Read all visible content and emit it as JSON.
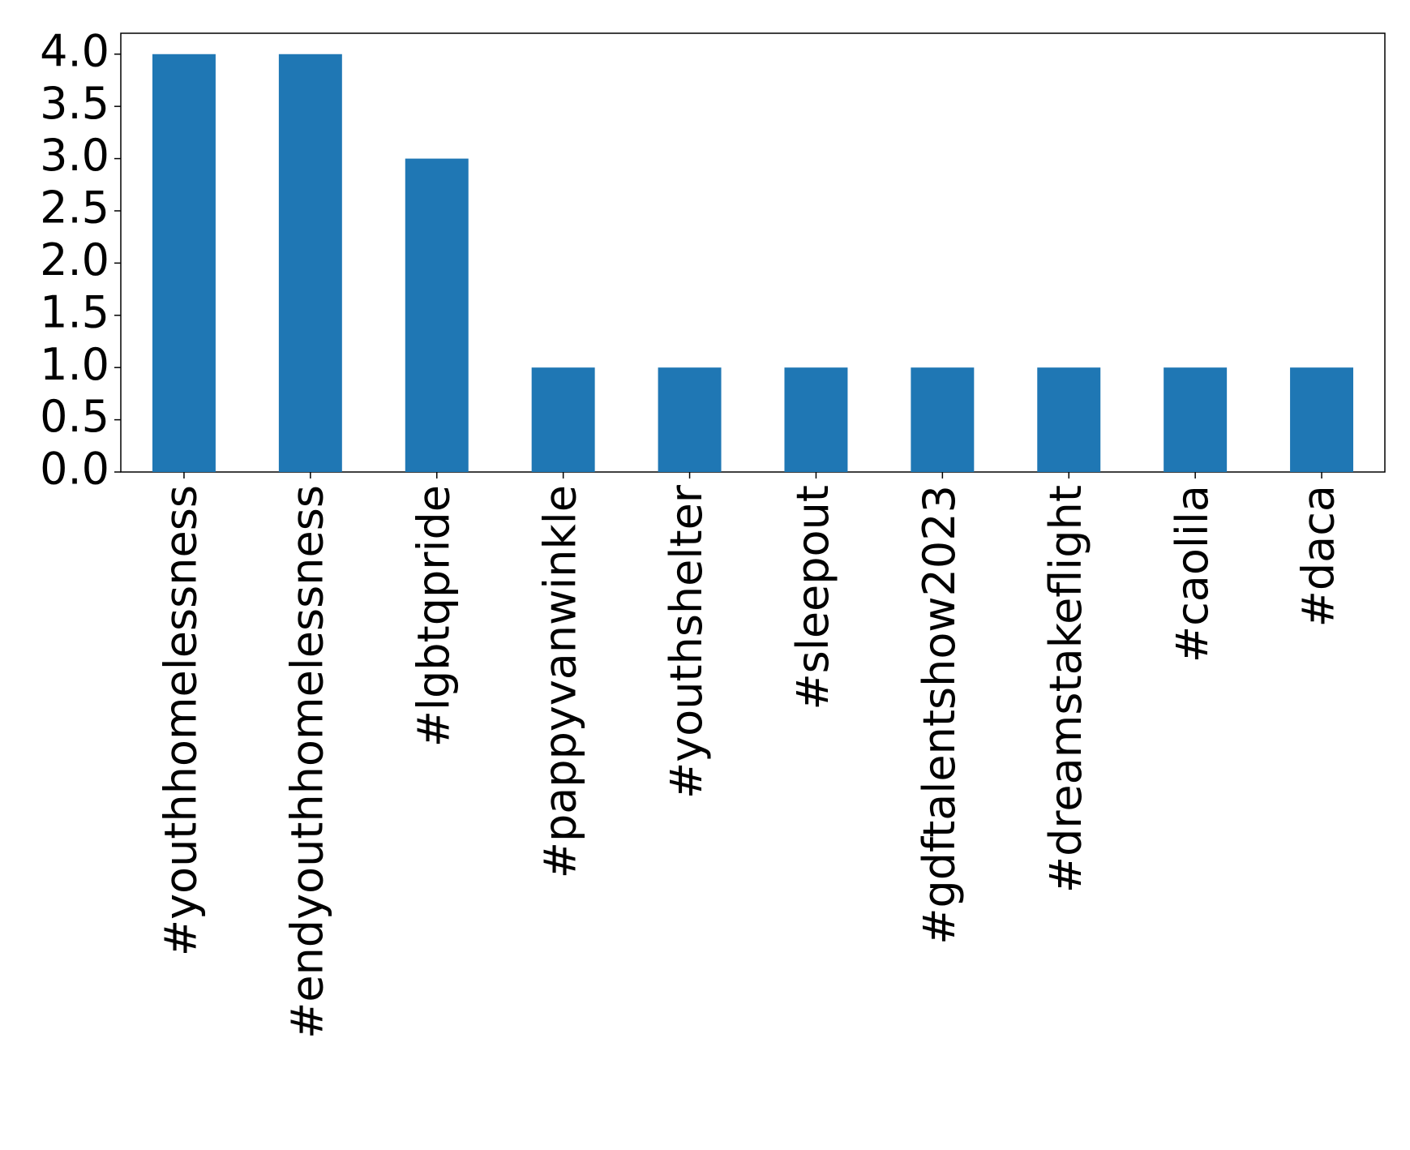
{
  "chart_data": {
    "type": "bar",
    "categories": [
      "#youthhomelessness",
      "#endyouthhomelessness",
      "#lgbtqpride",
      "#pappyvanwinkle",
      "#youthshelter",
      "#sleepout",
      "#gdftalentshow2023",
      "#dreamstakeflight",
      "#caolila",
      "#daca"
    ],
    "values": [
      4,
      4,
      3,
      1,
      1,
      1,
      1,
      1,
      1,
      1
    ],
    "color": "#1f77b4",
    "ylim": [
      0,
      4.2
    ],
    "yticks": [
      {
        "value": 0,
        "label": "0.0"
      },
      {
        "value": 0.5,
        "label": "0.5"
      },
      {
        "value": 1,
        "label": "1.0"
      },
      {
        "value": 1.5,
        "label": "1.5"
      },
      {
        "value": 2,
        "label": "2.0"
      },
      {
        "value": 2.5,
        "label": "2.5"
      },
      {
        "value": 3,
        "label": "3.0"
      },
      {
        "value": 3.5,
        "label": "3.5"
      },
      {
        "value": 4,
        "label": "4.0"
      }
    ],
    "grid": false
  }
}
